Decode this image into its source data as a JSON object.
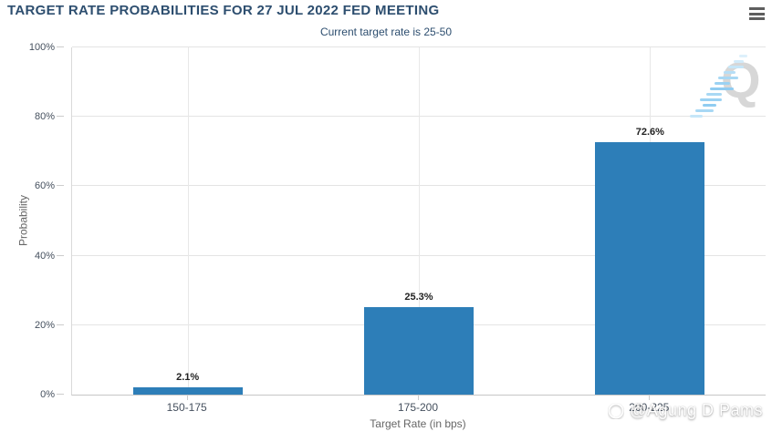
{
  "header": {
    "title": "TARGET RATE PROBABILITIES FOR 27 JUL 2022 FED MEETING",
    "subtitle": "Current target rate is 25-50"
  },
  "chart_data": {
    "type": "bar",
    "title": "TARGET RATE PROBABILITIES FOR 27 JUL 2022 FED MEETING",
    "subtitle": "Current target rate is 25-50",
    "categories": [
      "150-175",
      "175-200",
      "200-225"
    ],
    "values": [
      2.1,
      25.3,
      72.6
    ],
    "data_labels": [
      "2.1%",
      "25.3%",
      "72.6%"
    ],
    "xlabel": "Target Rate (in bps)",
    "ylabel": "Probability",
    "ylim": [
      0,
      100
    ],
    "ytick_labels": [
      "0%",
      "20%",
      "40%",
      "60%",
      "80%",
      "100%"
    ],
    "grid": "horizontal and vertical gridlines, light gray",
    "legend": "none",
    "bar_color": "#2d7eb8"
  },
  "colors": {
    "bar": "#2d7eb8",
    "title_text": "#2d4e6f",
    "axis_label": "#45505e",
    "gridline": "#e4e4e4"
  },
  "watermark": {
    "logo_text": "Q",
    "credit": "@Agung D Pams"
  }
}
